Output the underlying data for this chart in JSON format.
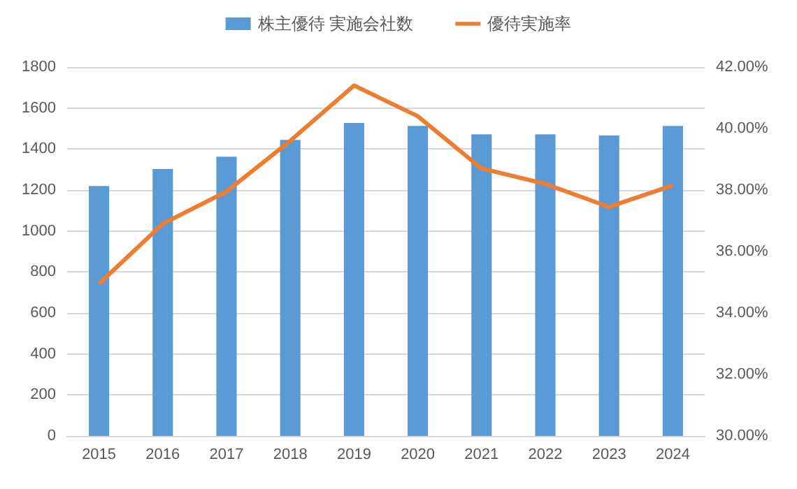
{
  "chart_data": {
    "type": "bar",
    "categories": [
      "2015",
      "2016",
      "2017",
      "2018",
      "2019",
      "2020",
      "2021",
      "2022",
      "2023",
      "2024"
    ],
    "series": [
      {
        "name": "株主優待 実施会社数",
        "color": "#5b9bd5",
        "values": [
          1220,
          1302,
          1363,
          1445,
          1527,
          1513,
          1472,
          1472,
          1466,
          1513
        ]
      },
      {
        "name": "優待実施率",
        "type": "line",
        "axis": "y2",
        "color": "#ed7d31",
        "values": [
          34.95,
          36.9,
          37.95,
          39.6,
          41.4,
          40.4,
          38.7,
          38.2,
          37.45,
          38.15
        ]
      }
    ],
    "ylim": [
      0,
      1800
    ],
    "yticks": [
      0,
      200,
      400,
      600,
      800,
      1000,
      1200,
      1400,
      1600,
      1800
    ],
    "y2lim": [
      30,
      42
    ],
    "y2ticks": [
      {
        "value": 30,
        "label": "30.00%"
      },
      {
        "value": 32,
        "label": "32.00%"
      },
      {
        "value": 34,
        "label": "34.00%"
      },
      {
        "value": 36,
        "label": "36.00%"
      },
      {
        "value": 38,
        "label": "38.00%"
      },
      {
        "value": 40,
        "label": "40.00%"
      },
      {
        "value": 42,
        "label": "42.00%"
      }
    ],
    "grid": "y",
    "legend": "top",
    "marker": "none"
  }
}
